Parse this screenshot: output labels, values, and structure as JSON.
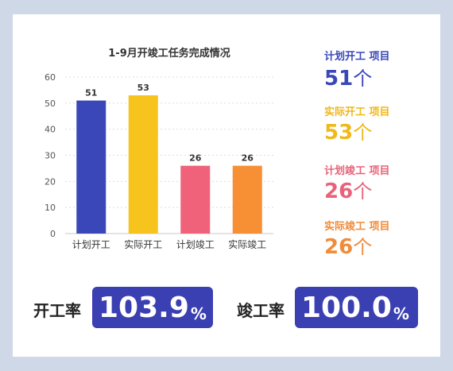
{
  "chart_data": {
    "type": "bar",
    "title": "1-9月开竣工任务完成情况",
    "categories": [
      "计划开工",
      "实际开工",
      "计划竣工",
      "实际竣工"
    ],
    "values": [
      51,
      53,
      26,
      26
    ],
    "data_labels": [
      "51",
      "53",
      "26",
      "26"
    ],
    "colors": [
      "#3a47b8",
      "#f6c41c",
      "#f0627a",
      "#f78f35"
    ],
    "ylim": [
      0,
      60
    ],
    "yticks": [
      "0",
      "10",
      "20",
      "30",
      "40",
      "50",
      "60"
    ],
    "grid": true,
    "legend": "none"
  },
  "stats": [
    {
      "label": "计划开工 项目",
      "value": "51",
      "unit": "个",
      "color": "#3a47b8"
    },
    {
      "label": "实际开工 项目",
      "value": "53",
      "unit": "个",
      "color": "#f0b81a"
    },
    {
      "label": "计划竣工 项目",
      "value": "26",
      "unit": "个",
      "color": "#e8637a"
    },
    {
      "label": "实际竣工 项目",
      "value": "26",
      "unit": "个",
      "color": "#f08c3a"
    }
  ],
  "rates": [
    {
      "label": "开工率",
      "value": "103.9",
      "unit": "%"
    },
    {
      "label": "竣工率",
      "value": "100.0",
      "unit": "%"
    }
  ]
}
